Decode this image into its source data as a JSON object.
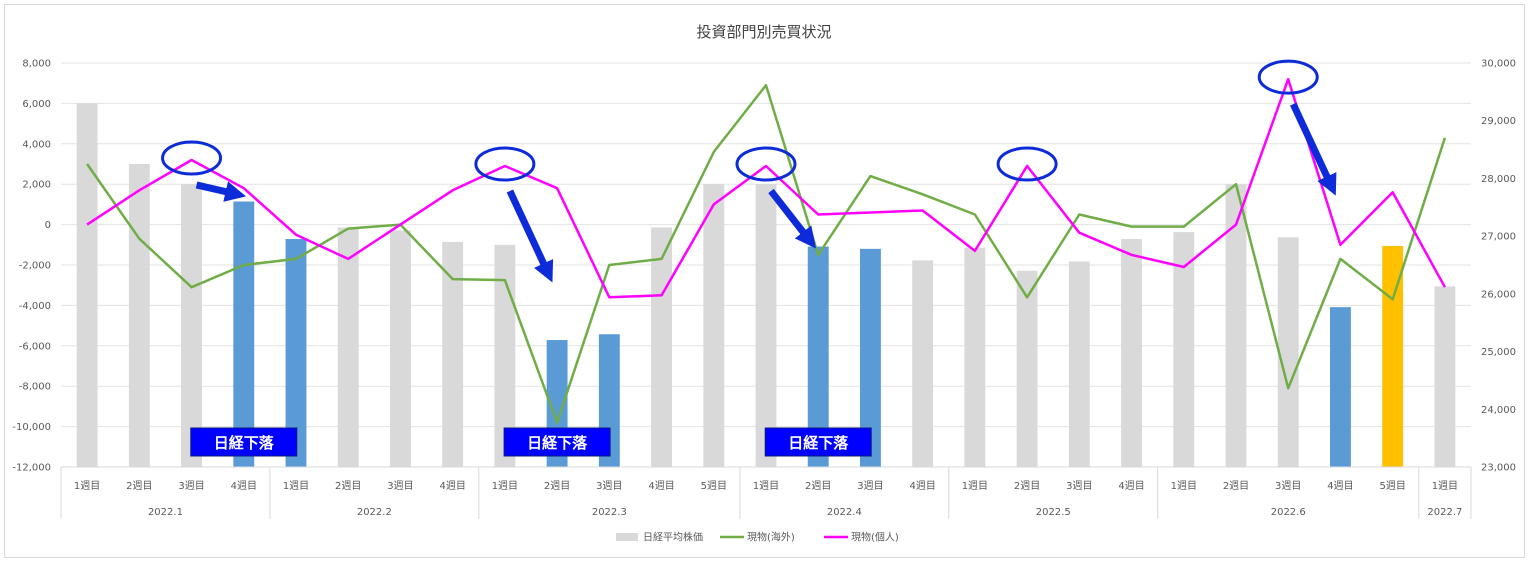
{
  "chart_data": {
    "type": "bar",
    "title": "投資部門別売買状況",
    "left_axis": {
      "range": [
        -12000,
        8000
      ],
      "ticks": [
        "8,000",
        "6,000",
        "4,000",
        "2,000",
        "0",
        "-2,000",
        "-4,000",
        "-6,000",
        "-8,000",
        "-10,000",
        "-12,000"
      ],
      "tick_values": [
        8000,
        6000,
        4000,
        2000,
        0,
        -2000,
        -4000,
        -6000,
        -8000,
        -10000,
        -12000
      ]
    },
    "right_axis": {
      "range": [
        23000,
        30000
      ],
      "ticks": [
        "30,000",
        "29,000",
        "28,000",
        "27,000",
        "26,000",
        "25,000",
        "24,000",
        "23,000"
      ],
      "tick_values": [
        30000,
        29000,
        28000,
        27000,
        26000,
        25000,
        24000,
        23000
      ]
    },
    "categories": [
      "1週目",
      "2週目",
      "3週目",
      "4週目",
      "1週目",
      "2週目",
      "3週目",
      "4週目",
      "1週目",
      "2週目",
      "3週目",
      "4週目",
      "5週目",
      "1週目",
      "2週目",
      "3週目",
      "4週目",
      "1週目",
      "2週目",
      "3週目",
      "4週目",
      "1週目",
      "2週目",
      "3週目",
      "4週目",
      "5週目",
      "1週目"
    ],
    "groups": [
      {
        "label": "2022.1",
        "start": 0,
        "count": 4
      },
      {
        "label": "2022.2",
        "start": 4,
        "count": 4
      },
      {
        "label": "2022.3",
        "start": 8,
        "count": 5
      },
      {
        "label": "2022.4",
        "start": 13,
        "count": 4
      },
      {
        "label": "2022.5",
        "start": 17,
        "count": 4
      },
      {
        "label": "2022.6",
        "start": 21,
        "count": 5
      },
      {
        "label": "2022.7",
        "start": 26,
        "count": 1
      }
    ],
    "series": [
      {
        "name": "日経平均株価",
        "kind": "bar",
        "axis": "right",
        "color": "#d9d9d9",
        "values": [
          29300,
          28250,
          27900,
          27600,
          26950,
          27150,
          27100,
          26900,
          26850,
          25200,
          25300,
          27150,
          27900,
          27900,
          26820,
          26780,
          26580,
          26800,
          26400,
          26560,
          26950,
          27070,
          27900,
          26980,
          25770,
          26830,
          26130
        ],
        "highlight_colors": {
          "3": "#5b9bd5",
          "4": "#5b9bd5",
          "9": "#5b9bd5",
          "10": "#5b9bd5",
          "14": "#5b9bd5",
          "15": "#5b9bd5",
          "24": "#5b9bd5",
          "25": "#ffc000"
        }
      },
      {
        "name": "現物(海外)",
        "kind": "line",
        "axis": "left",
        "color": "#70ad47",
        "values": [
          3000,
          -700,
          -3100,
          -2000,
          -1700,
          -200,
          0,
          -2700,
          -2750,
          -9800,
          -2000,
          -1700,
          3600,
          6900,
          -1500,
          2400,
          1500,
          500,
          -3600,
          500,
          -100,
          -100,
          2000,
          -8100,
          -1700,
          -3700,
          4300
        ]
      },
      {
        "name": "現物(個人)",
        "kind": "line",
        "axis": "left",
        "color": "#ff00ff",
        "values": [
          0,
          1700,
          3200,
          1800,
          -500,
          -1700,
          0,
          1700,
          2900,
          1800,
          -3600,
          -3500,
          1000,
          2900,
          500,
          600,
          700,
          -1300,
          2900,
          -400,
          -1500,
          -2100,
          0,
          7200,
          -1000,
          1600,
          -3100
        ]
      }
    ],
    "legend": {
      "placement": "bottom"
    },
    "annotations": {
      "circles": [
        {
          "index": 2,
          "series": "現物(個人)"
        },
        {
          "index": 8,
          "series": "現物(個人)"
        },
        {
          "index": 13,
          "series": "現物(個人)"
        },
        {
          "index": 18,
          "series": "現物(個人)"
        },
        {
          "index": 23,
          "series": "現物(個人)"
        }
      ],
      "arrows": [
        {
          "from_index": 2,
          "to_index": 3
        },
        {
          "from_index": 8,
          "to_index": 9
        },
        {
          "from_index": 13,
          "to_index": 14
        },
        {
          "from_index": 23,
          "to_index": 24
        }
      ],
      "callouts": [
        {
          "text": "日経下落",
          "center_index": 3.5
        },
        {
          "text": "日経下落",
          "center_index": 9.5
        },
        {
          "text": "日経下落",
          "center_index": 14.5
        }
      ]
    }
  }
}
